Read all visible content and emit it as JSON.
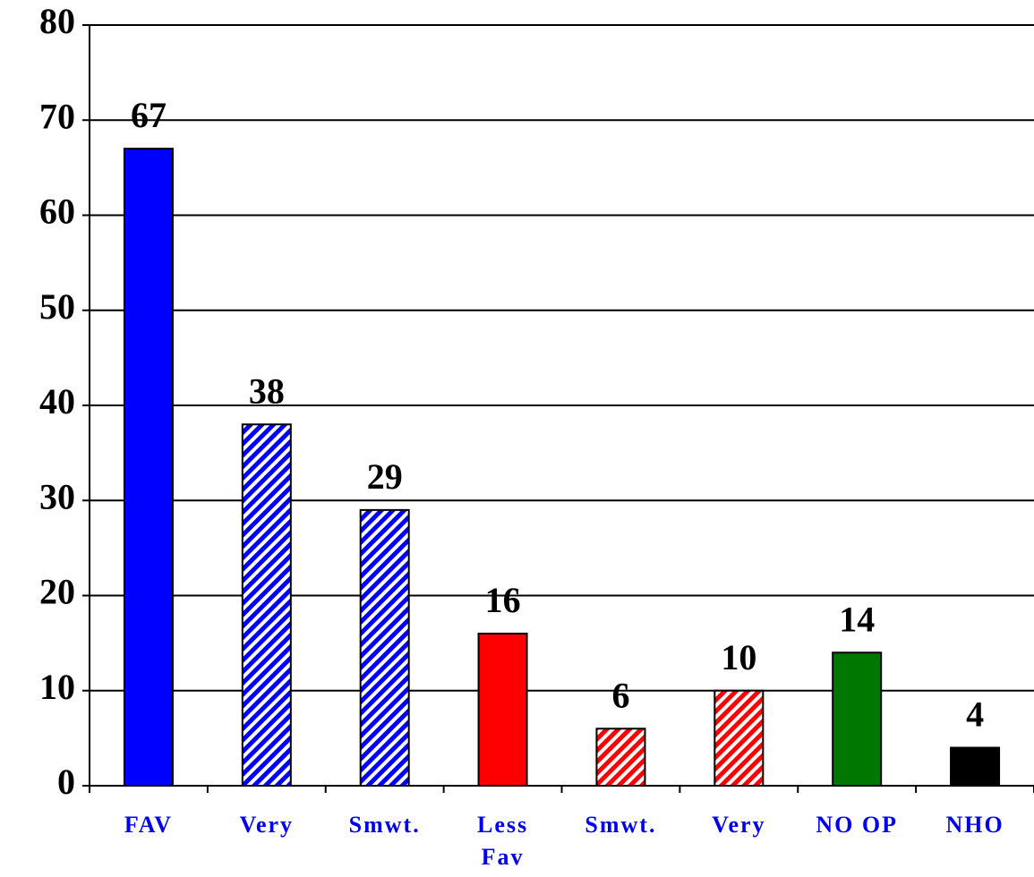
{
  "chart_data": {
    "type": "bar",
    "categories": [
      "FAV",
      "Very",
      "Smwt.",
      "Less\nFav",
      "Smwt.",
      "Very",
      "NO OP",
      "NHO"
    ],
    "values": [
      67,
      38,
      29,
      16,
      6,
      10,
      14,
      4
    ],
    "colors": [
      "#0000ff",
      "#0000ff",
      "#0000ff",
      "#ff0000",
      "#ff0000",
      "#ff0000",
      "#007700",
      "#000000"
    ],
    "hatched": [
      false,
      true,
      true,
      false,
      true,
      true,
      false,
      false
    ],
    "ylim": [
      0,
      80
    ],
    "yticks": [
      0,
      10,
      20,
      30,
      40,
      50,
      60,
      70,
      80
    ],
    "grid": true
  }
}
